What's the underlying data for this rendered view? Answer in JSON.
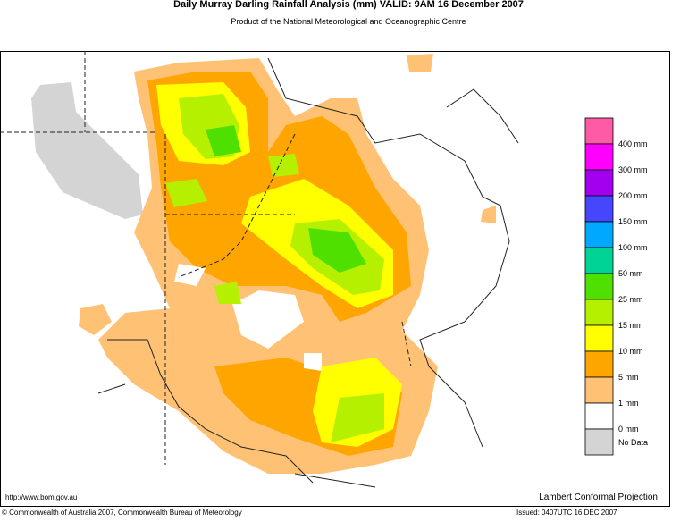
{
  "header": {
    "title": "Daily Murray Darling Rainfall Analysis (mm)  VALID: 9AM 16 December 2007",
    "subtitle": "Product of the National Meteorological and Oceanographic Centre"
  },
  "legend": {
    "colors": [
      "#ff5aa5",
      "#ff00ff",
      "#a400f0",
      "#4646ff",
      "#00a8ff",
      "#00d495",
      "#4fe000",
      "#b4f000",
      "#ffff00",
      "#ffa500",
      "#ffc275",
      "#ffffff",
      "#d4d4d4"
    ],
    "boundary_labels": [
      "400 mm",
      "300 mm",
      "200 mm",
      "150 mm",
      "100 mm",
      "50 mm",
      "25 mm",
      "15 mm",
      "10 mm",
      "5 mm",
      "1 mm",
      "0 mm"
    ],
    "no_data_label": "No Data"
  },
  "footer": {
    "url": "http://www.bom.gov.au",
    "projection": "Lambert Conformal Projection",
    "copyright": "© Commonwealth of Australia 2007, Commonwealth Bureau of Meteorology",
    "issued": "Issued: 0407UTC 16 DEC 2007"
  }
}
